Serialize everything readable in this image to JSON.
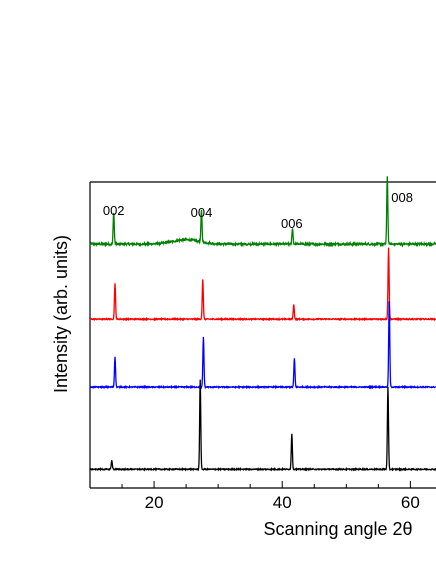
{
  "chart_data": {
    "type": "line",
    "xlabel": "Scanning angle 2θ",
    "ylabel": "Intensity (arb. units)",
    "xlim": [
      10,
      64
    ],
    "x_ticks": [
      20,
      40,
      60
    ],
    "x_tick_labels": [
      "20",
      "40",
      "60"
    ],
    "y_ticks_labeled": false,
    "grid": false,
    "legend": "none",
    "peak_labels": [
      {
        "text": "002",
        "x": 13.7
      },
      {
        "text": "004",
        "x": 27.4
      },
      {
        "text": "006",
        "x": 41.5
      },
      {
        "text": "008",
        "x": 56.4
      }
    ],
    "series": [
      {
        "color": "#008000",
        "baseline": 7.6,
        "noise": 0.06,
        "hump": {
          "center": 25,
          "width": 3,
          "height": 0.12
        },
        "peaks": [
          {
            "x": 13.7,
            "height": 0.9
          },
          {
            "x": 27.4,
            "height": 0.9
          },
          {
            "x": 41.6,
            "height": 0.45
          },
          {
            "x": 56.4,
            "height": 1.9
          }
        ]
      },
      {
        "color": "#ff0000",
        "baseline": 5.5,
        "noise": 0.03,
        "peaks": [
          {
            "x": 13.9,
            "height": 1.0
          },
          {
            "x": 27.6,
            "height": 1.1
          },
          {
            "x": 41.8,
            "height": 0.4
          },
          {
            "x": 56.6,
            "height": 2.0
          }
        ]
      },
      {
        "color": "#0000ff",
        "baseline": 3.6,
        "noise": 0.03,
        "peaks": [
          {
            "x": 13.9,
            "height": 0.85
          },
          {
            "x": 27.7,
            "height": 1.4
          },
          {
            "x": 41.9,
            "height": 0.8
          },
          {
            "x": 56.7,
            "height": 2.4
          }
        ]
      },
      {
        "color": "#000000",
        "baseline": 1.3,
        "noise": 0.03,
        "peaks": [
          {
            "x": 13.4,
            "height": 0.25
          },
          {
            "x": 27.2,
            "height": 2.5
          },
          {
            "x": 41.5,
            "height": 1.0
          },
          {
            "x": 56.5,
            "height": 2.3
          }
        ]
      }
    ],
    "ylim": [
      1,
      9
    ]
  }
}
